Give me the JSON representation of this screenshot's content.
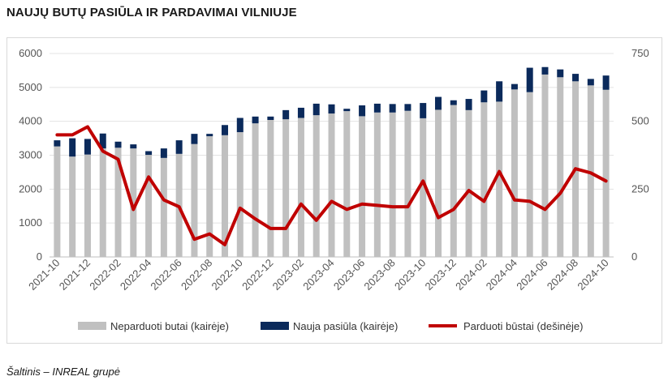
{
  "title": "NAUJŲ BUTŲ PASIŪLA IR PARDAVIMAI VILNIUJE",
  "source": "Šaltinis – INREAL grupė",
  "colors": {
    "unsold": "#c0c0c0",
    "new": "#0b2a5b",
    "sold": "#c00000"
  },
  "chart_data": {
    "type": "bar",
    "x_labels": [
      "2021-10",
      "2021-11",
      "2021-12",
      "2022-01",
      "2022-02",
      "2022-03",
      "2022-04",
      "2022-05",
      "2022-06",
      "2022-07",
      "2022-08",
      "2022-09",
      "2022-10",
      "2022-11",
      "2022-12",
      "2023-01",
      "2023-02",
      "2023-03",
      "2023-04",
      "2023-05",
      "2023-06",
      "2023-07",
      "2023-08",
      "2023-09",
      "2023-10",
      "2023-11",
      "2023-12",
      "2024-01",
      "2024-02",
      "2024-03",
      "2024-04",
      "2024-05",
      "2024-06",
      "2024-07",
      "2024-08",
      "2024-09",
      "2024-10"
    ],
    "tick_labels": [
      "2021-10",
      "2021-12",
      "2022-02",
      "2022-04",
      "2022-06",
      "2022-08",
      "2022-10",
      "2022-12",
      "2023-02",
      "2023-04",
      "2023-06",
      "2023-08",
      "2023-10",
      "2023-12",
      "2024-02",
      "2024-04",
      "2024-06",
      "2024-08",
      "2024-10"
    ],
    "y_left_ticks": [
      "0",
      "1000",
      "2000",
      "3000",
      "4000",
      "5000",
      "6000"
    ],
    "y_left_lim": [
      0,
      6000
    ],
    "y_right_ticks": [
      "0",
      "250",
      "500",
      "750"
    ],
    "y_right_lim": [
      0,
      750
    ],
    "series": [
      {
        "name": "Neparduoti butai (kairėje)",
        "kind": "bar",
        "axis": "left",
        "values": [
          3260,
          2960,
          3020,
          3200,
          3220,
          3200,
          3010,
          2920,
          3040,
          3330,
          3560,
          3590,
          3680,
          3940,
          4040,
          4060,
          4100,
          4180,
          4230,
          4300,
          4150,
          4260,
          4260,
          4310,
          4090,
          4340,
          4480,
          4330,
          4560,
          4580,
          4940,
          4860,
          5380,
          5300,
          5180,
          5060,
          4930
        ]
      },
      {
        "name": "Nauja pasiūla (kairėje)",
        "kind": "bar-stack",
        "axis": "left",
        "values": [
          180,
          540,
          460,
          440,
          180,
          120,
          110,
          280,
          400,
          300,
          70,
          300,
          420,
          200,
          100,
          270,
          300,
          340,
          270,
          70,
          320,
          260,
          250,
          200,
          450,
          380,
          140,
          330,
          350,
          600,
          160,
          720,
          220,
          230,
          220,
          190,
          420
        ]
      },
      {
        "name": "Parduoti būstai (dešinėje)",
        "kind": "line",
        "axis": "right",
        "values": [
          450,
          450,
          480,
          390,
          360,
          175,
          295,
          210,
          185,
          65,
          85,
          45,
          180,
          140,
          105,
          105,
          195,
          135,
          205,
          175,
          195,
          190,
          185,
          185,
          280,
          145,
          175,
          245,
          205,
          315,
          210,
          205,
          175,
          235,
          325,
          310,
          280
        ]
      }
    ],
    "legend_position": "bottom",
    "grid": "horizontal"
  }
}
